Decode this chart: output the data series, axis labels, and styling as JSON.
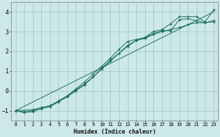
{
  "xlabel": "Humidex (Indice chaleur)",
  "bg_color": "#cce8e8",
  "grid_color": "#aacece",
  "line_color": "#1a6b60",
  "xlim": [
    -0.5,
    23.5
  ],
  "ylim": [
    -1.5,
    4.5
  ],
  "xticks": [
    0,
    1,
    2,
    3,
    4,
    5,
    6,
    7,
    8,
    9,
    10,
    11,
    12,
    13,
    14,
    15,
    16,
    17,
    18,
    19,
    20,
    21,
    22,
    23
  ],
  "yticks": [
    -1,
    0,
    1,
    2,
    3,
    4
  ],
  "lines": [
    {
      "x": [
        0,
        1,
        2,
        3,
        4,
        5,
        6,
        7,
        8,
        9,
        10,
        11,
        12,
        13,
        14,
        15,
        16,
        17,
        18,
        19,
        20,
        21,
        22,
        23
      ],
      "y": [
        -1.0,
        -1.05,
        -1.0,
        -0.85,
        -0.75,
        -0.55,
        -0.25,
        0.1,
        0.45,
        0.85,
        1.25,
        1.65,
        2.1,
        2.5,
        2.6,
        2.7,
        3.0,
        3.1,
        3.4,
        3.75,
        3.75,
        3.75,
        3.5,
        4.1
      ],
      "marker": true
    },
    {
      "x": [
        0,
        1,
        2,
        3,
        4,
        5,
        6,
        7,
        8,
        9,
        10,
        11,
        12,
        13,
        14,
        15,
        16,
        17,
        18,
        19,
        20,
        21,
        22,
        23
      ],
      "y": [
        -1.0,
        -1.1,
        -1.05,
        -0.9,
        -0.8,
        -0.55,
        -0.3,
        0.0,
        0.3,
        0.7,
        1.15,
        1.55,
        1.9,
        2.3,
        2.55,
        2.7,
        2.9,
        3.05,
        3.05,
        3.6,
        3.65,
        3.55,
        3.45,
        3.55
      ],
      "marker": true
    },
    {
      "x": [
        0,
        2,
        3,
        4,
        5,
        6,
        7,
        8,
        9,
        10,
        11,
        12,
        13,
        14,
        15,
        16,
        17,
        18,
        19,
        20,
        21,
        22,
        23
      ],
      "y": [
        -1.0,
        -0.95,
        -0.85,
        -0.75,
        -0.5,
        -0.25,
        0.05,
        0.35,
        0.7,
        1.1,
        1.5,
        1.9,
        2.25,
        2.55,
        2.65,
        2.85,
        3.0,
        3.1,
        3.2,
        3.35,
        3.45,
        3.45,
        3.5
      ],
      "marker": true
    },
    {
      "x": [
        0,
        23
      ],
      "y": [
        -1.0,
        4.0
      ],
      "marker": false
    }
  ]
}
